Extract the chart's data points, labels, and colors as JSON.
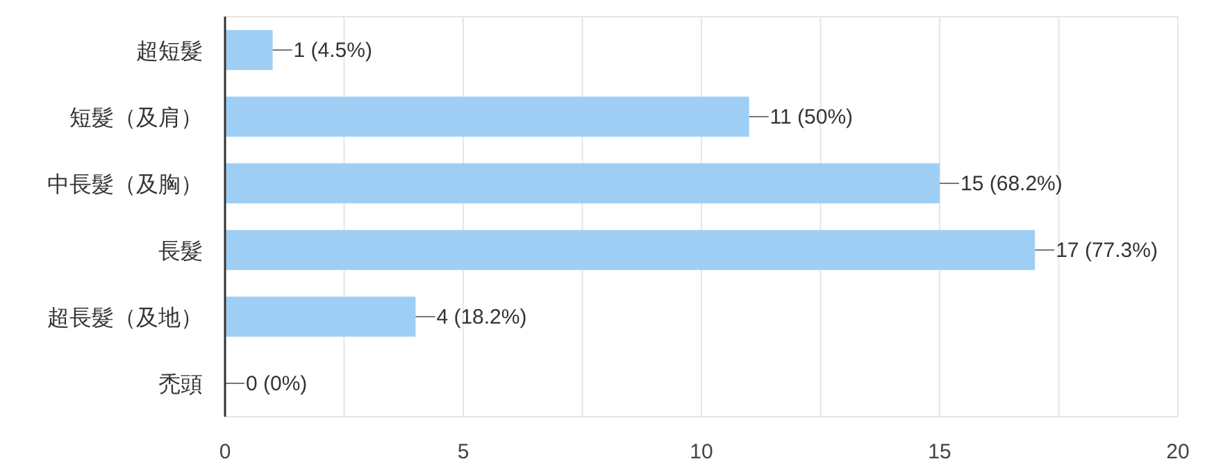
{
  "chart_data": {
    "type": "bar",
    "orientation": "horizontal",
    "categories": [
      "超短髮",
      "短髮（及肩）",
      "中長髮（及胸）",
      "長髮",
      "超長髮（及地）",
      "禿頭"
    ],
    "values": [
      1,
      11,
      15,
      17,
      4,
      0
    ],
    "value_labels": [
      "1 (4.5%)",
      "11 (50%)",
      "15 (68.2%)",
      "17 (77.3%)",
      "4 (18.2%)",
      "0 (0%)"
    ],
    "color": "#9fcef5",
    "xlim": [
      0,
      20
    ],
    "xticks": [
      0,
      {
        "value": 2.5,
        "label": null
      },
      5,
      {
        "value": 7.5,
        "label": null
      },
      10,
      {
        "value": 12.5,
        "label": null
      },
      15,
      {
        "value": 17.5,
        "label": null
      },
      20
    ],
    "grid": "x"
  }
}
